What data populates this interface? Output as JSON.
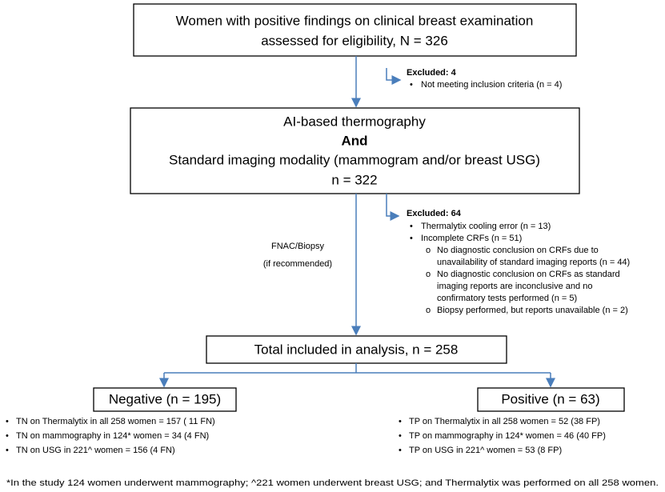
{
  "nodes": [
    {
      "lines": [
        "Women with positive findings on clinical breast examination",
        "assessed for eligibility, N = 326"
      ]
    },
    {
      "lines": [
        "AI-based thermography",
        "And",
        "Standard imaging modality (mammogram and/or breast USG)",
        "n = 322"
      ]
    },
    {
      "lines": [
        "Total included in analysis, n = 258"
      ]
    },
    {
      "lines": [
        "Negative (n = 195)"
      ]
    },
    {
      "lines": [
        "Positive (n = 63)"
      ]
    }
  ],
  "exclusions": [
    {
      "title": "Excluded: 4",
      "items": [
        "Not meeting inclusion criteria (n = 4)"
      ]
    },
    {
      "title": "Excluded: 64",
      "items": [
        "Thermalytix cooling error (n = 13)",
        "Incomplete CRFs (n = 51)"
      ],
      "subitems": [
        [
          "No diagnostic conclusion on CRFs due to",
          "unavailability of standard imaging reports (n = 44)"
        ],
        [
          "No diagnostic conclusion on CRFs as standard",
          "imaging reports are inconclusive and no",
          "confirmatory tests performed (n = 5)"
        ],
        [
          "Biopsy performed, but reports unavailable (n = 2)"
        ]
      ]
    }
  ],
  "edge_label": [
    "FNAC/Biopsy",
    "(if recommended)"
  ],
  "negative_items": [
    "TN  on Thermalytix in all 258 women = 157  ( 11 FN)",
    "TN on mammography in 124* women = 34  (4 FN)",
    "TN on USG in 221^ women = 156  (4 FN)"
  ],
  "positive_items": [
    "TP on Thermalytix in all 258 women = 52 (38 FP)",
    "TP on mammography in 124* women = 46 (40 FP)",
    "TP on USG in 221^ women = 53  (8 FP)"
  ],
  "footnote": "*In the study 124 women underwent mammography; ^221 women underwent breast USG; and Thermalytix was performed on all 258 women."
}
